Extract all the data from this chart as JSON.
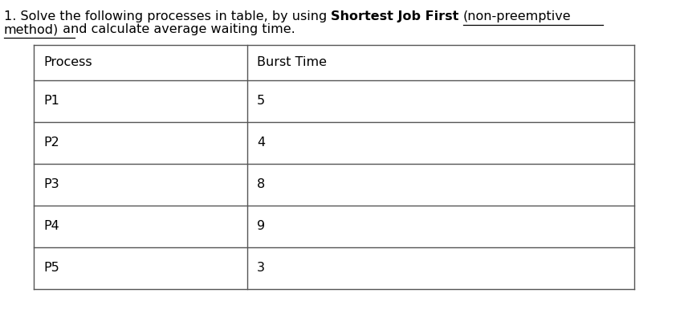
{
  "title_normal1": "1. Solve the following processes in table, by using ",
  "title_bold": "Shortest Job First",
  "title_normal2": " (non-preemptive",
  "title_underline_part": "(non-preemptive",
  "title_line2_underline": "method)",
  "title_line2_rest": " and calculate average waiting time.",
  "col1_header": "Process",
  "col2_header": "Burst Time",
  "processes": [
    "P1",
    "P2",
    "P3",
    "P4",
    "P5"
  ],
  "burst_times": [
    "5",
    "4",
    "8",
    "9",
    "3"
  ],
  "background_color": "#ffffff",
  "text_color": "#000000",
  "table_line_color": "#555555",
  "font_size": 11.5
}
